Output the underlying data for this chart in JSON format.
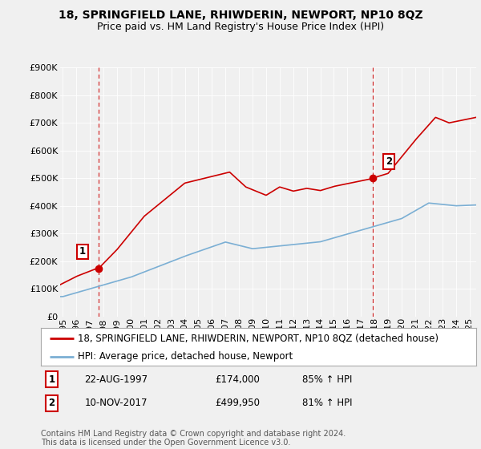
{
  "title": "18, SPRINGFIELD LANE, RHIWDERIN, NEWPORT, NP10 8QZ",
  "subtitle": "Price paid vs. HM Land Registry's House Price Index (HPI)",
  "ylim": [
    0,
    900000
  ],
  "xlim_start": 1994.8,
  "xlim_end": 2025.5,
  "xticks": [
    1995,
    1996,
    1997,
    1998,
    1999,
    2000,
    2001,
    2002,
    2003,
    2004,
    2005,
    2006,
    2007,
    2008,
    2009,
    2010,
    2011,
    2012,
    2013,
    2014,
    2015,
    2016,
    2017,
    2018,
    2019,
    2020,
    2021,
    2022,
    2023,
    2024,
    2025
  ],
  "purchase1_x": 1997.644,
  "purchase1_y": 174000,
  "purchase2_x": 2017.861,
  "purchase2_y": 499950,
  "line_color_property": "#cc0000",
  "line_color_hpi": "#7bafd4",
  "vline_color": "#cc0000",
  "background_color": "#f0f0f0",
  "plot_bg_color": "#f0f0f0",
  "grid_color": "#ffffff",
  "legend_line1": "18, SPRINGFIELD LANE, RHIWDERIN, NEWPORT, NP10 8QZ (detached house)",
  "legend_line2": "HPI: Average price, detached house, Newport",
  "table_row1": [
    "1",
    "22-AUG-1997",
    "£174,000",
    "85% ↑ HPI"
  ],
  "table_row2": [
    "2",
    "10-NOV-2017",
    "£499,950",
    "81% ↑ HPI"
  ],
  "footer": "Contains HM Land Registry data © Crown copyright and database right 2024.\nThis data is licensed under the Open Government Licence v3.0.",
  "title_fontsize": 10,
  "subtitle_fontsize": 9,
  "tick_fontsize": 8,
  "legend_fontsize": 8.5,
  "table_fontsize": 8.5,
  "footer_fontsize": 7
}
